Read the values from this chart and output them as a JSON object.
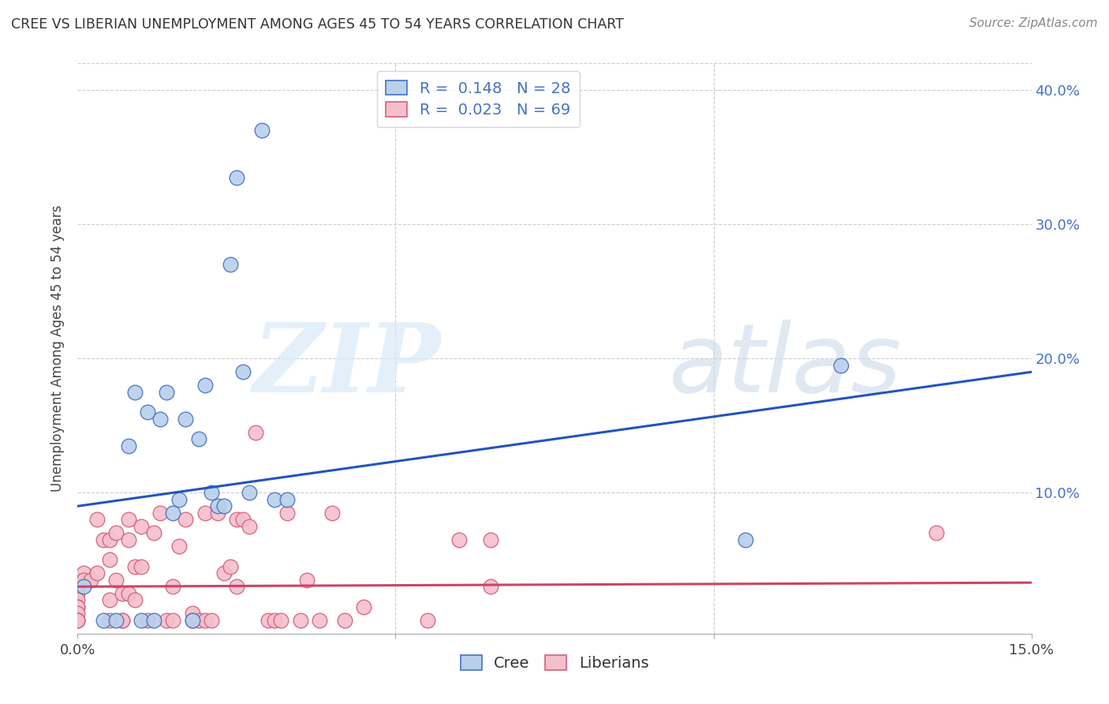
{
  "title": "CREE VS LIBERIAN UNEMPLOYMENT AMONG AGES 45 TO 54 YEARS CORRELATION CHART",
  "source": "Source: ZipAtlas.com",
  "ylabel": "Unemployment Among Ages 45 to 54 years",
  "xlim": [
    0.0,
    0.15
  ],
  "ylim": [
    -0.005,
    0.42
  ],
  "watermark_zip": "ZIP",
  "watermark_atlas": "atlas",
  "cree_R": 0.148,
  "cree_N": 28,
  "lib_R": 0.023,
  "lib_N": 69,
  "cree_face_color": "#b8d0ea",
  "cree_edge_color": "#4472c4",
  "lib_face_color": "#f4bfcc",
  "lib_edge_color": "#d4607a",
  "cree_line_color": "#2255bb",
  "lib_line_color": "#cc4466",
  "cree_line_y0": 0.09,
  "cree_line_y1": 0.19,
  "lib_line_y0": 0.03,
  "lib_line_y1": 0.033,
  "cree_x": [
    0.001,
    0.004,
    0.006,
    0.008,
    0.009,
    0.01,
    0.011,
    0.012,
    0.013,
    0.014,
    0.015,
    0.016,
    0.017,
    0.018,
    0.019,
    0.02,
    0.021,
    0.022,
    0.023,
    0.024,
    0.025,
    0.026,
    0.027,
    0.029,
    0.031,
    0.033,
    0.105,
    0.12
  ],
  "cree_y": [
    0.03,
    0.005,
    0.005,
    0.135,
    0.175,
    0.005,
    0.16,
    0.005,
    0.155,
    0.175,
    0.085,
    0.095,
    0.155,
    0.005,
    0.14,
    0.18,
    0.1,
    0.09,
    0.09,
    0.27,
    0.335,
    0.19,
    0.1,
    0.37,
    0.095,
    0.095,
    0.065,
    0.195
  ],
  "lib_x": [
    0.0,
    0.0,
    0.0,
    0.0,
    0.0,
    0.0,
    0.0,
    0.0,
    0.0,
    0.0,
    0.001,
    0.001,
    0.002,
    0.003,
    0.003,
    0.004,
    0.005,
    0.005,
    0.005,
    0.005,
    0.006,
    0.006,
    0.007,
    0.007,
    0.007,
    0.008,
    0.008,
    0.008,
    0.009,
    0.009,
    0.01,
    0.01,
    0.011,
    0.012,
    0.013,
    0.014,
    0.015,
    0.015,
    0.016,
    0.017,
    0.018,
    0.018,
    0.019,
    0.02,
    0.02,
    0.021,
    0.022,
    0.023,
    0.024,
    0.025,
    0.025,
    0.026,
    0.027,
    0.028,
    0.03,
    0.031,
    0.032,
    0.033,
    0.035,
    0.036,
    0.038,
    0.04,
    0.042,
    0.045,
    0.055,
    0.06,
    0.065,
    0.065,
    0.135
  ],
  "lib_y": [
    0.035,
    0.03,
    0.025,
    0.02,
    0.015,
    0.015,
    0.01,
    0.005,
    0.005,
    0.005,
    0.04,
    0.035,
    0.035,
    0.08,
    0.04,
    0.065,
    0.065,
    0.05,
    0.02,
    0.005,
    0.07,
    0.035,
    0.025,
    0.005,
    0.005,
    0.08,
    0.065,
    0.025,
    0.045,
    0.02,
    0.075,
    0.045,
    0.005,
    0.07,
    0.085,
    0.005,
    0.03,
    0.005,
    0.06,
    0.08,
    0.01,
    0.005,
    0.005,
    0.085,
    0.005,
    0.005,
    0.085,
    0.04,
    0.045,
    0.08,
    0.03,
    0.08,
    0.075,
    0.145,
    0.005,
    0.005,
    0.005,
    0.085,
    0.005,
    0.035,
    0.005,
    0.085,
    0.005,
    0.015,
    0.005,
    0.065,
    0.065,
    0.03,
    0.07
  ]
}
